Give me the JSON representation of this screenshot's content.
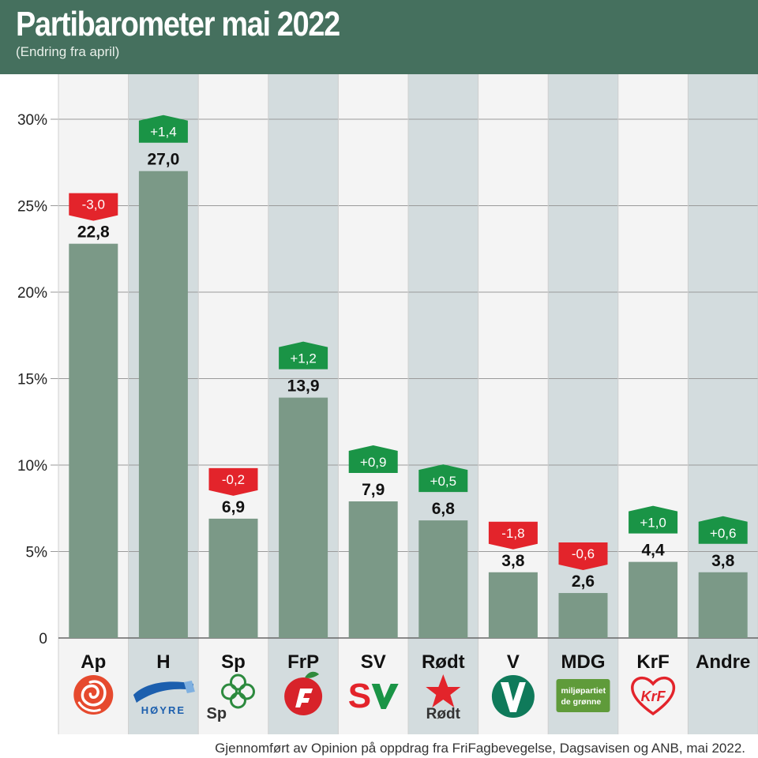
{
  "header": {
    "title": "Partibarometer mai 2022",
    "subtitle": "(Endring fra april)"
  },
  "footer": {
    "source": "Gjennomført av Opinion på oppdrag fra FriFagbevegelse, Dagsavisen og ANB, mai 2022."
  },
  "colors": {
    "header_bg": "#45705e",
    "bar": "#7b9987",
    "positive": "#1a9446",
    "negative": "#e3242b",
    "col_light": "#f4f4f4",
    "col_dark": "#d3dcde"
  },
  "chart_data": {
    "type": "bar",
    "categories": [
      "Ap",
      "H",
      "Sp",
      "FrP",
      "SV",
      "Rødt",
      "V",
      "MDG",
      "KrF",
      "Andre"
    ],
    "values": [
      22.8,
      27.0,
      6.9,
      13.9,
      7.9,
      6.8,
      3.8,
      2.6,
      4.4,
      3.8
    ],
    "value_labels": [
      "22,8",
      "27,0",
      "6,9",
      "13,9",
      "7,9",
      "6,8",
      "3,8",
      "2,6",
      "4,4",
      "3,8"
    ],
    "changes": [
      -3.0,
      1.4,
      -0.2,
      1.2,
      0.9,
      0.5,
      -1.8,
      -0.6,
      1.0,
      0.6
    ],
    "change_labels": [
      "-3,0",
      "+1,4",
      "-0,2",
      "+1,2",
      "+0,9",
      "+0,5",
      "-1,8",
      "-0,6",
      "+1,0",
      "+0,6"
    ],
    "ylim": [
      0,
      30
    ],
    "yticks": [
      0,
      5,
      10,
      15,
      20,
      25,
      30
    ],
    "ytick_labels": [
      "0",
      "5%",
      "10%",
      "15%",
      "20%",
      "25%",
      "30%"
    ],
    "grid": true,
    "logos": [
      {
        "icon": "rose-icon",
        "text": ""
      },
      {
        "icon": "hoyre-wave-icon",
        "text": "HØYRE"
      },
      {
        "icon": "clover-icon",
        "text": "Sp"
      },
      {
        "icon": "apple-icon",
        "text": ""
      },
      {
        "icon": "sv-icon",
        "text": "SV"
      },
      {
        "icon": "red-star-icon",
        "text": "Rødt"
      },
      {
        "icon": "venstre-v-icon",
        "text": ""
      },
      {
        "icon": "mdg-box-icon",
        "text": "miljøpartiet de grønne"
      },
      {
        "icon": "krf-heart-icon",
        "text": "KrF"
      },
      {
        "icon": "",
        "text": ""
      }
    ]
  }
}
